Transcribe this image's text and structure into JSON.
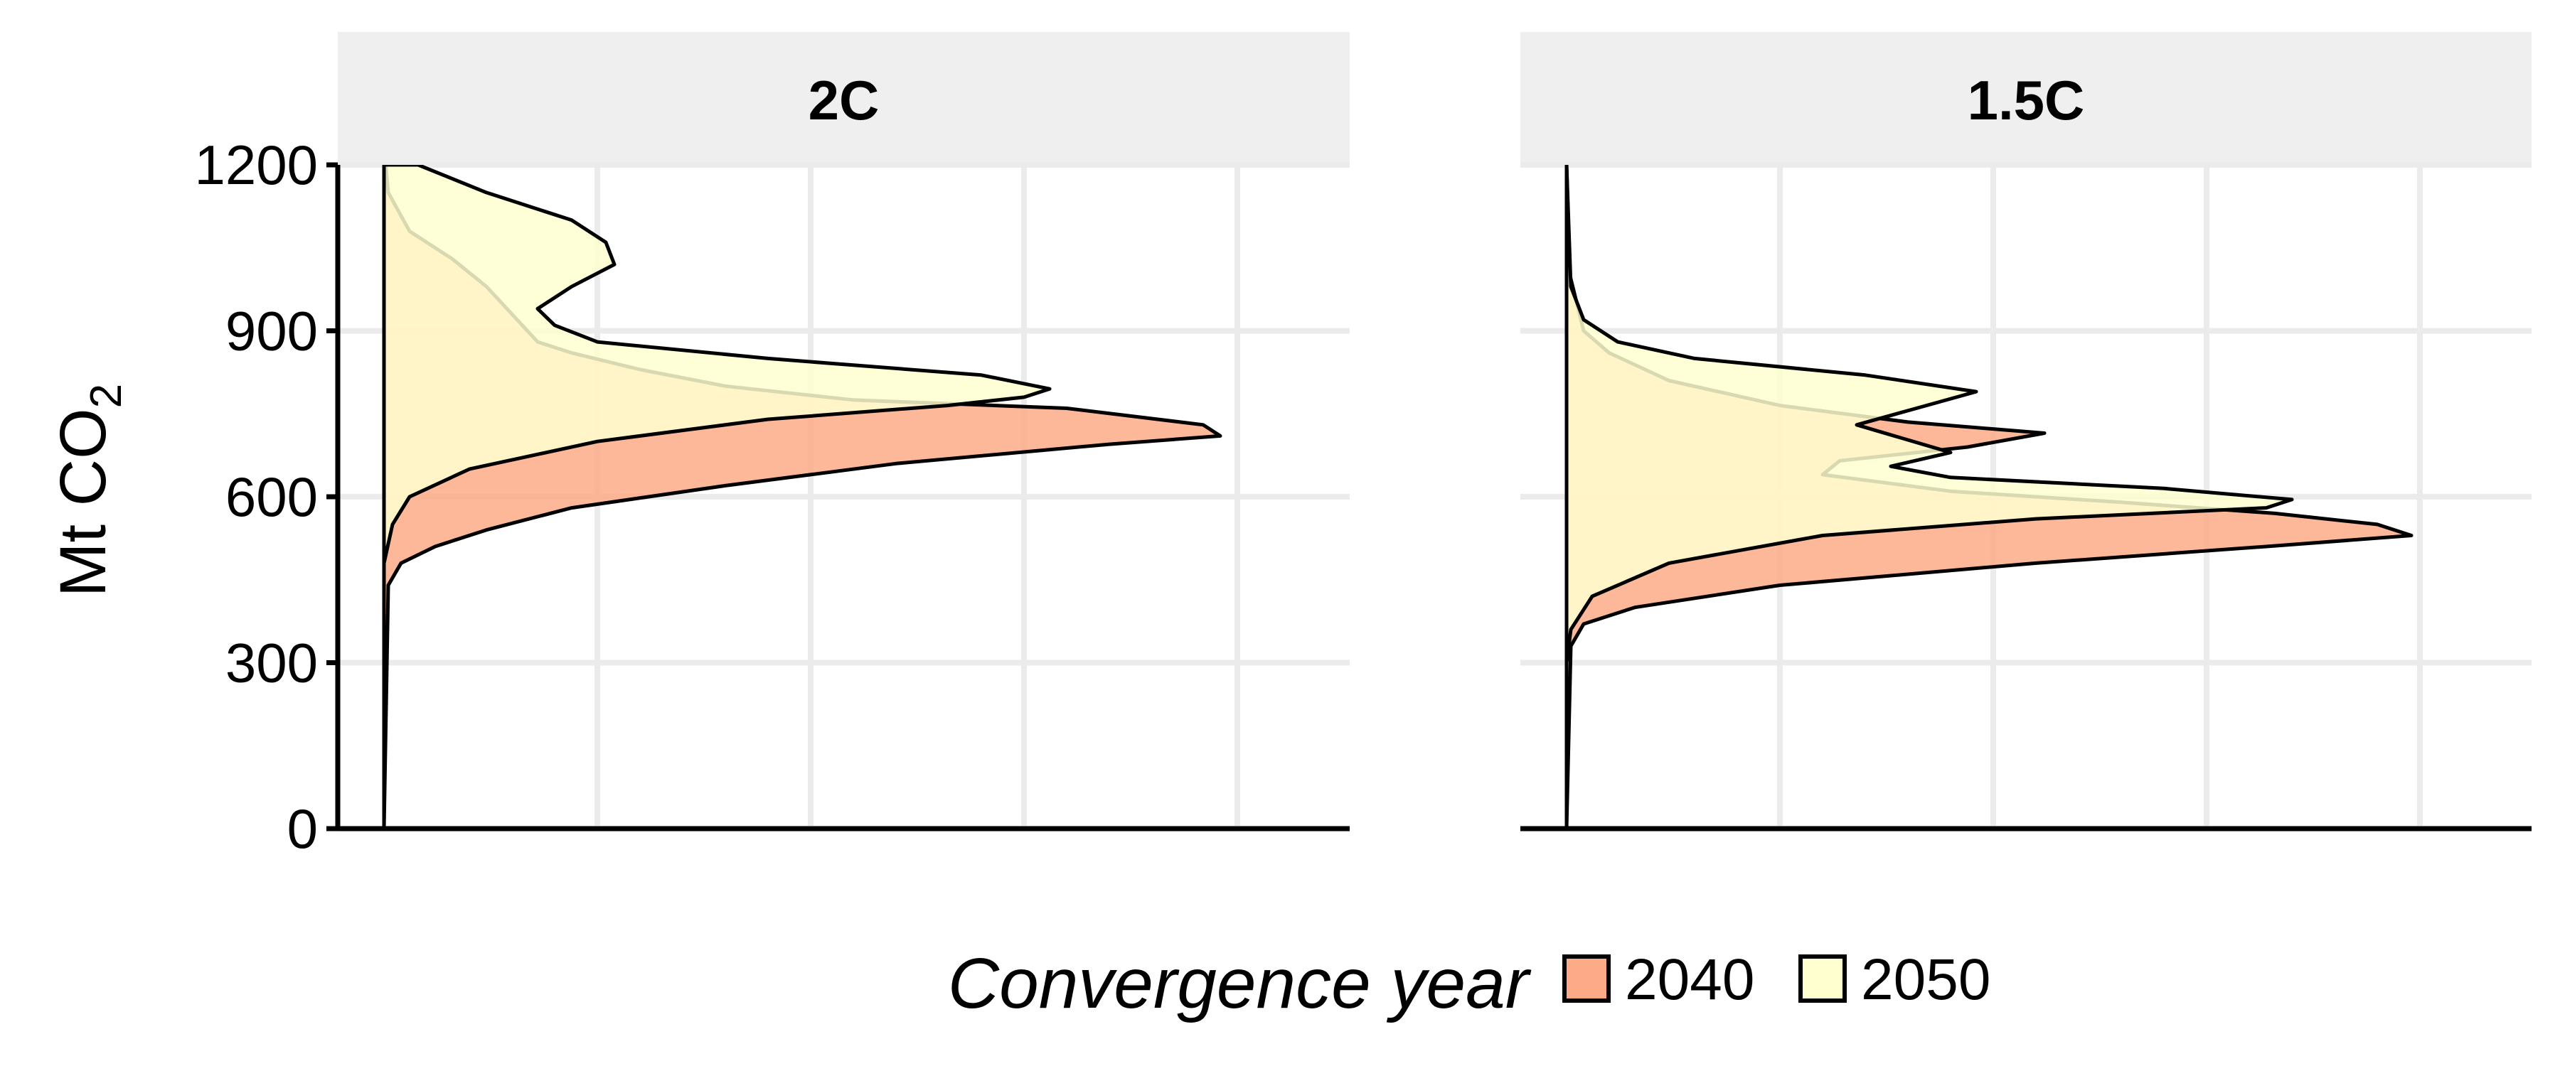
{
  "chart_data": {
    "type": "area",
    "subtype": "vertical density (ridgeline) plot, faceted",
    "y_axis": {
      "label_main": "Mt CO",
      "label_subscript": "2",
      "ticks": [
        "0",
        "300",
        "600",
        "900",
        "1200"
      ],
      "tick_values": [
        0,
        300,
        600,
        900,
        1200
      ],
      "ylim": [
        0,
        1200
      ]
    },
    "x_axis": {
      "label": "",
      "tick_labels_shown": false,
      "relative_density_max": 1.0
    },
    "grid": true,
    "legend": {
      "title": "Convergence year",
      "position": "bottom",
      "entries": [
        {
          "label": "2040",
          "color": "#fcab86"
        },
        {
          "label": "2050",
          "color": "#ffffd0"
        }
      ]
    },
    "facets": [
      {
        "label": "2C",
        "series": [
          {
            "name": "2040",
            "color": "#fcab86",
            "points": [
              [
                0,
                0
              ],
              [
                0.005,
                440
              ],
              [
                0.02,
                480
              ],
              [
                0.06,
                510
              ],
              [
                0.12,
                540
              ],
              [
                0.22,
                580
              ],
              [
                0.4,
                620
              ],
              [
                0.6,
                660
              ],
              [
                0.85,
                695
              ],
              [
                0.98,
                710
              ],
              [
                0.96,
                730
              ],
              [
                0.8,
                760
              ],
              [
                0.55,
                775
              ],
              [
                0.4,
                800
              ],
              [
                0.3,
                830
              ],
              [
                0.22,
                860
              ],
              [
                0.18,
                880
              ],
              [
                0.15,
                930
              ],
              [
                0.12,
                980
              ],
              [
                0.08,
                1030
              ],
              [
                0.03,
                1080
              ],
              [
                0.005,
                1150
              ],
              [
                0.002,
                1200
              ]
            ]
          },
          {
            "name": "2050",
            "color": "#ffffd0",
            "points": [
              [
                0,
                480
              ],
              [
                0.01,
                550
              ],
              [
                0.03,
                600
              ],
              [
                0.1,
                650
              ],
              [
                0.25,
                700
              ],
              [
                0.45,
                740
              ],
              [
                0.66,
                765
              ],
              [
                0.75,
                780
              ],
              [
                0.78,
                795
              ],
              [
                0.7,
                820
              ],
              [
                0.45,
                850
              ],
              [
                0.25,
                880
              ],
              [
                0.2,
                910
              ],
              [
                0.18,
                940
              ],
              [
                0.22,
                980
              ],
              [
                0.27,
                1020
              ],
              [
                0.26,
                1060
              ],
              [
                0.22,
                1100
              ],
              [
                0.12,
                1150
              ],
              [
                0.04,
                1200
              ]
            ]
          }
        ]
      },
      {
        "label": "1.5C",
        "series": [
          {
            "name": "2040",
            "color": "#fcab86",
            "points": [
              [
                0,
                0
              ],
              [
                0.005,
                330
              ],
              [
                0.02,
                370
              ],
              [
                0.08,
                400
              ],
              [
                0.25,
                440
              ],
              [
                0.55,
                480
              ],
              [
                0.82,
                510
              ],
              [
                0.99,
                530
              ],
              [
                0.95,
                550
              ],
              [
                0.83,
                570
              ],
              [
                0.65,
                590
              ],
              [
                0.45,
                610
              ],
              [
                0.3,
                640
              ],
              [
                0.32,
                665
              ],
              [
                0.47,
                690
              ],
              [
                0.56,
                715
              ],
              [
                0.4,
                735
              ],
              [
                0.25,
                765
              ],
              [
                0.12,
                810
              ],
              [
                0.05,
                860
              ],
              [
                0.02,
                900
              ],
              [
                0.004,
                1000
              ],
              [
                0,
                1200
              ]
            ]
          },
          {
            "name": "2050",
            "color": "#ffffd0",
            "points": [
              [
                0,
                300
              ],
              [
                0.005,
                360
              ],
              [
                0.03,
                420
              ],
              [
                0.12,
                480
              ],
              [
                0.3,
                530
              ],
              [
                0.55,
                560
              ],
              [
                0.82,
                580
              ],
              [
                0.85,
                595
              ],
              [
                0.7,
                615
              ],
              [
                0.45,
                635
              ],
              [
                0.38,
                655
              ],
              [
                0.45,
                680
              ],
              [
                0.34,
                730
              ],
              [
                0.41,
                760
              ],
              [
                0.48,
                790
              ],
              [
                0.35,
                820
              ],
              [
                0.15,
                850
              ],
              [
                0.06,
                880
              ],
              [
                0.02,
                920
              ],
              [
                0.005,
                980
              ],
              [
                0,
                1200
              ]
            ]
          }
        ]
      }
    ]
  }
}
